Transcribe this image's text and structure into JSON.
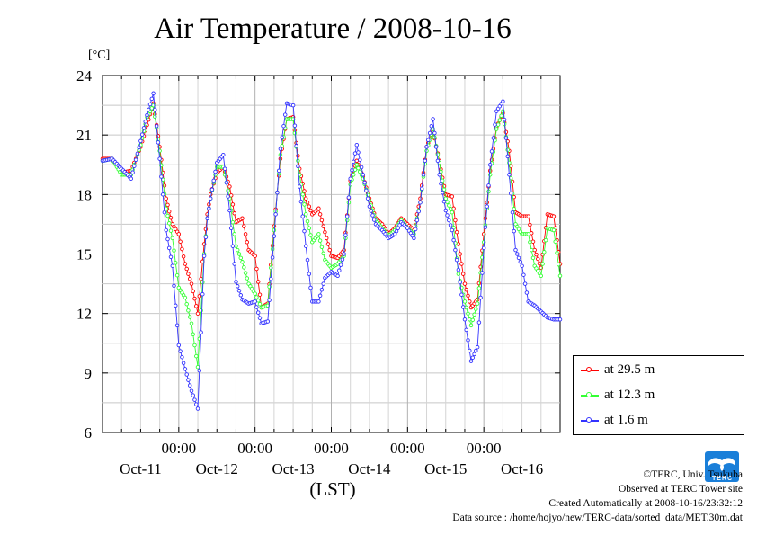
{
  "chart_data": {
    "type": "line",
    "title": "Air Temperature / 2008-10-16",
    "ylabel": "[°C]",
    "xlabel": "(LST)",
    "ylim": [
      6,
      24
    ],
    "yticks": [
      "6",
      "9",
      "12",
      "15",
      "18",
      "21",
      "24"
    ],
    "xlim": [
      0,
      144
    ],
    "day_labels": [
      "Oct-11",
      "Oct-12",
      "Oct-13",
      "Oct-14",
      "Oct-15",
      "Oct-16"
    ],
    "midnight_labels": [
      "00:00",
      "00:00",
      "00:00",
      "00:00",
      "00:00"
    ],
    "grid": true,
    "legend_position": "right",
    "x_unit_note": "hours from 2008-10-11 00:00 LST",
    "series": [
      {
        "name": "at 29.5 m",
        "color": "#ff0000",
        "x": [
          0,
          3,
          6,
          9,
          12,
          14,
          16,
          18,
          20,
          22,
          24,
          26,
          28,
          30,
          32,
          33,
          34,
          36,
          38,
          40,
          42,
          44,
          46,
          48,
          50,
          52,
          54,
          56,
          58,
          60,
          62,
          64,
          66,
          68,
          70,
          72,
          74,
          76,
          78,
          80,
          82,
          84,
          86,
          88,
          90,
          92,
          94,
          96,
          98,
          100,
          102,
          104,
          106,
          108,
          110,
          112,
          114,
          116,
          118,
          120,
          122,
          124,
          126,
          128,
          130,
          132,
          134,
          136,
          138,
          140,
          142,
          144
        ],
        "values": [
          19.8,
          19.8,
          19.1,
          19.2,
          20.4,
          21.5,
          22.6,
          20.4,
          17.8,
          16.5,
          16.0,
          14.5,
          13.5,
          12.0,
          15.5,
          17.0,
          18.0,
          19.1,
          19.4,
          18.4,
          16.6,
          16.8,
          15.2,
          14.9,
          12.3,
          12.5,
          16.4,
          19.8,
          21.8,
          21.9,
          19.3,
          17.8,
          17.0,
          17.3,
          16.1,
          14.9,
          14.8,
          15.2,
          18.7,
          19.7,
          18.9,
          17.8,
          16.8,
          16.5,
          16.0,
          16.3,
          16.8,
          16.5,
          16.2,
          17.8,
          20.4,
          21.2,
          19.7,
          18.0,
          17.9,
          15.5,
          13.5,
          12.3,
          12.7,
          16.0,
          19.2,
          21.4,
          22.1,
          20.2,
          17.1,
          16.9,
          16.9,
          15.2,
          14.3,
          17.0,
          16.9,
          14.5
        ]
      },
      {
        "name": "at 12.3 m",
        "color": "#33ff33",
        "x": [
          0,
          3,
          6,
          9,
          12,
          14,
          16,
          18,
          20,
          22,
          24,
          26,
          28,
          30,
          32,
          33,
          34,
          36,
          38,
          40,
          42,
          44,
          46,
          48,
          50,
          52,
          54,
          56,
          58,
          60,
          62,
          64,
          66,
          68,
          70,
          72,
          74,
          76,
          78,
          80,
          82,
          84,
          86,
          88,
          90,
          92,
          94,
          96,
          98,
          100,
          102,
          104,
          106,
          108,
          110,
          112,
          114,
          116,
          118,
          120,
          122,
          124,
          126,
          128,
          130,
          132,
          134,
          136,
          138,
          140,
          142,
          144
        ],
        "values": [
          19.7,
          19.8,
          19.0,
          19.0,
          20.5,
          21.9,
          22.5,
          20.2,
          17.3,
          15.8,
          13.3,
          12.8,
          11.5,
          9.3,
          15.0,
          16.8,
          17.8,
          19.4,
          19.4,
          17.8,
          15.4,
          14.6,
          13.5,
          13.0,
          12.3,
          12.4,
          16.2,
          20.0,
          21.8,
          21.8,
          19.0,
          17.0,
          15.6,
          16.0,
          14.7,
          14.3,
          14.5,
          14.9,
          18.5,
          19.5,
          18.8,
          17.7,
          16.7,
          16.3,
          15.9,
          16.2,
          16.7,
          16.3,
          16.0,
          17.6,
          20.2,
          21.3,
          19.6,
          17.8,
          17.1,
          14.0,
          12.6,
          11.4,
          12.5,
          15.6,
          19.0,
          21.3,
          22.2,
          19.6,
          16.5,
          16.0,
          16.0,
          14.4,
          13.9,
          16.3,
          16.2,
          13.9
        ]
      },
      {
        "name": "at 1.6 m",
        "color": "#3333ff",
        "x": [
          0,
          3,
          6,
          9,
          12,
          14,
          16,
          18,
          20,
          22,
          24,
          26,
          28,
          30,
          32,
          33,
          34,
          36,
          38,
          40,
          42,
          44,
          46,
          48,
          50,
          52,
          54,
          56,
          58,
          60,
          62,
          64,
          66,
          68,
          70,
          72,
          74,
          76,
          78,
          80,
          82,
          84,
          86,
          88,
          90,
          92,
          94,
          96,
          98,
          100,
          102,
          104,
          106,
          108,
          110,
          112,
          114,
          116,
          118,
          120,
          122,
          124,
          126,
          128,
          130,
          132,
          134,
          136,
          138,
          140,
          142,
          144
        ],
        "values": [
          19.7,
          19.8,
          19.3,
          18.8,
          20.7,
          22.0,
          23.1,
          19.8,
          16.2,
          14.4,
          10.4,
          9.2,
          8.1,
          7.2,
          14.9,
          16.8,
          17.8,
          19.6,
          20.0,
          17.2,
          13.6,
          12.7,
          12.5,
          12.6,
          11.5,
          11.6,
          15.9,
          20.3,
          22.6,
          22.5,
          18.4,
          15.4,
          12.6,
          12.6,
          13.8,
          14.1,
          13.9,
          15.0,
          18.8,
          20.5,
          19.0,
          17.4,
          16.5,
          16.2,
          15.8,
          16.0,
          16.6,
          16.3,
          15.8,
          17.6,
          20.4,
          21.8,
          19.0,
          17.2,
          16.2,
          14.2,
          11.7,
          9.6,
          10.3,
          15.3,
          19.5,
          22.2,
          22.7,
          19.0,
          15.2,
          14.4,
          12.6,
          12.4,
          12.1,
          11.8,
          11.7,
          11.7
        ]
      }
    ]
  },
  "footer": {
    "line1": "©TERC, Univ. Tsukuba",
    "line2": "Observed at TERC Tower site",
    "line3": "Created Automatically at 2008-10-16/23:32:12",
    "line4": "Data source : /home/hojyo/new/TERC-data/sorted_data/MET.30m.dat"
  },
  "logo": {
    "text": "TERC",
    "color": "#1a7fd9"
  }
}
